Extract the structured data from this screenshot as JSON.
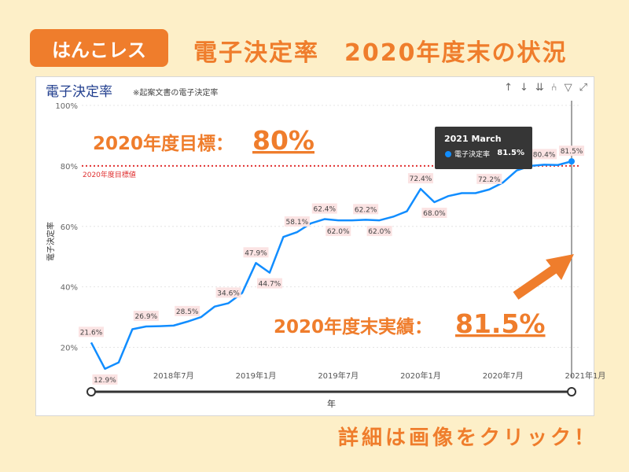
{
  "badge": "はんこレス",
  "headline": "電子決定率　2020年度末の状況",
  "panel": {
    "title": "電子決定率",
    "note": "※起案文書の電子決定率",
    "tool_icons": [
      "↑",
      "↓",
      "⇊",
      "⑃",
      "▽",
      "⤢"
    ]
  },
  "callouts": {
    "target_label": "2020年度目標：",
    "target_value": "80%",
    "actual_label": "2020年度末実績：",
    "actual_value": "81.5%"
  },
  "tooltip": {
    "title": "2021 March",
    "label": "電子決定率",
    "value": "81.5%"
  },
  "footer": "詳細は画像をクリック！",
  "colors": {
    "accent": "#ef7d2c",
    "line": "#118dff",
    "target_line": "#e03030",
    "background": "#fdefc8"
  },
  "chart_data": {
    "type": "line",
    "xlabel": "年",
    "ylabel": "電子決定率",
    "ylim": [
      0.1,
      1.0
    ],
    "yticks": [
      "100%",
      "80%",
      "60%",
      "40%",
      "20%"
    ],
    "ytick_values": [
      1.0,
      0.8,
      0.6,
      0.4,
      0.2
    ],
    "xtick_labels": [
      "2018年7月",
      "2019年1月",
      "2019年7月",
      "2020年1月",
      "2020年7月",
      "2021年1月"
    ],
    "xtick_indices": [
      6,
      12,
      18,
      24,
      30,
      36
    ],
    "target": {
      "value": 0.8,
      "label": "2020年度目標値"
    },
    "series": [
      {
        "values": [
          0.216,
          0.129,
          0.15,
          0.26,
          0.269,
          0.27,
          0.272,
          0.285,
          0.3,
          0.335,
          0.346,
          0.38,
          0.479,
          0.447,
          0.565,
          0.581,
          0.61,
          0.624,
          0.62,
          0.62,
          0.622,
          0.62,
          0.632,
          0.65,
          0.724,
          0.68,
          0.7,
          0.71,
          0.71,
          0.722,
          0.745,
          0.785,
          0.8,
          0.804,
          0.803,
          0.815
        ],
        "data_labels": [
          {
            "index": 0,
            "text": "21.6%"
          },
          {
            "index": 1,
            "text": "12.9%"
          },
          {
            "index": 4,
            "text": "26.9%"
          },
          {
            "index": 7,
            "text": "28.5%"
          },
          {
            "index": 10,
            "text": "34.6%"
          },
          {
            "index": 12,
            "text": "47.9%"
          },
          {
            "index": 13,
            "text": "44.7%"
          },
          {
            "index": 15,
            "text": "58.1%"
          },
          {
            "index": 17,
            "text": "62.4%"
          },
          {
            "index": 18,
            "text": "62.0%"
          },
          {
            "index": 20,
            "text": "62.2%"
          },
          {
            "index": 21,
            "text": "62.0%"
          },
          {
            "index": 24,
            "text": "72.4%"
          },
          {
            "index": 25,
            "text": "68.0%"
          },
          {
            "index": 29,
            "text": "72.2%"
          },
          {
            "index": 33,
            "text": "80.4%"
          },
          {
            "index": 35,
            "text": "81.5%"
          }
        ]
      }
    ]
  }
}
